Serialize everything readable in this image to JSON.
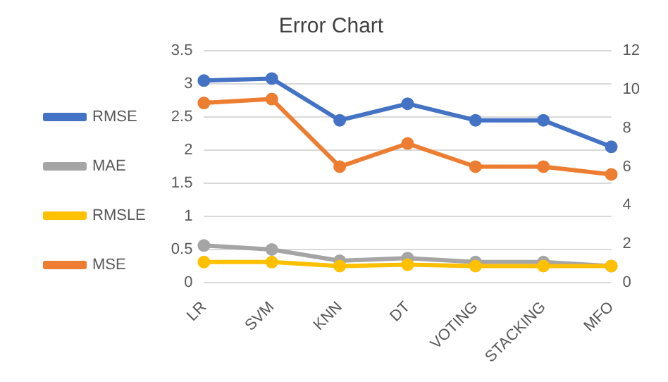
{
  "chart_data": {
    "type": "line",
    "title": "Error Chart",
    "categories": [
      "LR",
      "SVM",
      "KNN",
      "DT",
      "VOTING",
      "STACKING",
      "MFO"
    ],
    "series": [
      {
        "name": "RMSE",
        "color": "#4472c4",
        "values": [
          3.05,
          3.08,
          2.45,
          2.7,
          2.45,
          2.45,
          2.05
        ]
      },
      {
        "name": "MAE",
        "color": "#a5a5a5",
        "values": [
          0.56,
          0.5,
          0.33,
          0.37,
          0.31,
          0.31,
          0.25
        ]
      },
      {
        "name": "RMSLE",
        "color": "#ffc000",
        "values": [
          0.31,
          0.31,
          0.25,
          0.27,
          0.25,
          0.25,
          0.25
        ]
      },
      {
        "name": "MSE",
        "color": "#ed7d31",
        "values": [
          9.3,
          9.5,
          6.0,
          7.2,
          6.0,
          6.0,
          5.6
        ],
        "axis": "y2"
      }
    ],
    "ylim": [
      0,
      3.5
    ],
    "yticks": [
      0,
      0.5,
      1,
      1.5,
      2,
      2.5,
      3,
      3.5
    ],
    "y2lim": [
      0,
      12
    ],
    "y2ticks": [
      0,
      2,
      4,
      6,
      8,
      10,
      12
    ],
    "grid": "y",
    "legend": "left",
    "marker": "circle"
  }
}
